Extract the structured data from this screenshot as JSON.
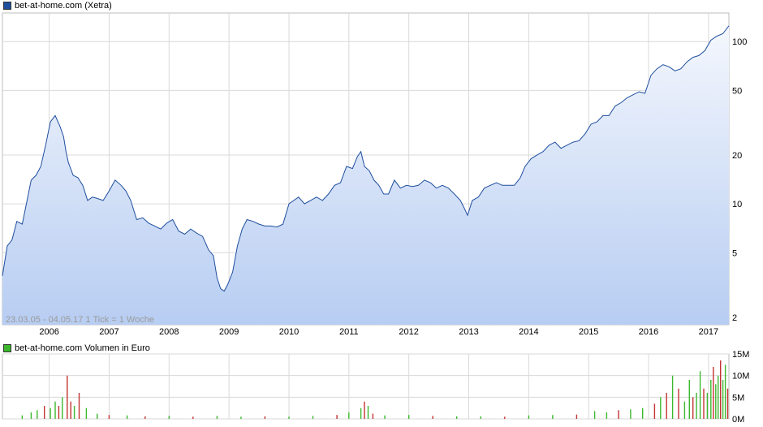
{
  "colors": {
    "price_line": "#1f4e9e",
    "price_fill_top": "#f4f7fd",
    "price_fill_bottom": "#b7cdf2",
    "volume_up": "#3cb82e",
    "volume_down": "#c43333",
    "grid": "#d9d9d9"
  },
  "chart_data": [
    {
      "type": "area",
      "title": "bet-at-home.com (Xetra)",
      "legend_color": "#1f4e9e",
      "note": "23.03.05 - 04.05.17   1 Tick = 1 Woche",
      "y_scale": "log",
      "ylim": [
        1.8,
        150
      ],
      "y_ticks": [
        2,
        5,
        10,
        20,
        50,
        100
      ],
      "y_tick_labels": [
        "2",
        "5",
        "10",
        "20",
        "50",
        "100"
      ],
      "x_ticks": [
        2006,
        2007,
        2008,
        2009,
        2010,
        2011,
        2012,
        2013,
        2014,
        2015,
        2016,
        2017
      ],
      "xlim": [
        2005.22,
        2017.34
      ],
      "grid": true,
      "series": [
        {
          "x": [
            2005.22,
            2005.3,
            2005.38,
            2005.46,
            2005.55,
            2005.62,
            2005.7,
            2005.78,
            2005.86,
            2005.94,
            2006.02,
            2006.1,
            2006.18,
            2006.24,
            2006.28,
            2006.32,
            2006.4,
            2006.48,
            2006.56,
            2006.64,
            2006.72,
            2006.8,
            2006.9,
            2007.0,
            2007.1,
            2007.2,
            2007.28,
            2007.36,
            2007.46,
            2007.56,
            2007.66,
            2007.76,
            2007.86,
            2007.96,
            2008.06,
            2008.16,
            2008.26,
            2008.36,
            2008.46,
            2008.56,
            2008.66,
            2008.74,
            2008.8,
            2008.86,
            2008.92,
            2008.98,
            2009.06,
            2009.14,
            2009.22,
            2009.3,
            2009.4,
            2009.5,
            2009.6,
            2009.7,
            2009.8,
            2009.9,
            2010.0,
            2010.08,
            2010.16,
            2010.26,
            2010.36,
            2010.46,
            2010.56,
            2010.66,
            2010.76,
            2010.86,
            2010.96,
            2011.06,
            2011.14,
            2011.2,
            2011.26,
            2011.34,
            2011.42,
            2011.5,
            2011.58,
            2011.66,
            2011.76,
            2011.86,
            2011.96,
            2012.06,
            2012.16,
            2012.26,
            2012.36,
            2012.46,
            2012.56,
            2012.66,
            2012.76,
            2012.86,
            2012.92,
            2012.98,
            2013.06,
            2013.16,
            2013.26,
            2013.36,
            2013.46,
            2013.56,
            2013.66,
            2013.76,
            2013.86,
            2013.94,
            2014.04,
            2014.14,
            2014.24,
            2014.34,
            2014.44,
            2014.54,
            2014.64,
            2014.74,
            2014.84,
            2014.94,
            2015.04,
            2015.14,
            2015.24,
            2015.34,
            2015.44,
            2015.54,
            2015.64,
            2015.74,
            2015.84,
            2015.94,
            2016.04,
            2016.14,
            2016.24,
            2016.34,
            2016.44,
            2016.54,
            2016.64,
            2016.74,
            2016.84,
            2016.94,
            2017.04,
            2017.14,
            2017.24,
            2017.34
          ],
          "values": [
            3.6,
            5.5,
            6.0,
            7.8,
            7.5,
            10.0,
            14.0,
            15.0,
            17.0,
            23.0,
            32.0,
            35.0,
            30.0,
            26.0,
            21.0,
            18.0,
            15.0,
            14.5,
            13.0,
            10.5,
            11.0,
            10.8,
            10.5,
            12.0,
            14.0,
            13.0,
            12.0,
            10.5,
            8.0,
            8.2,
            7.6,
            7.3,
            7.0,
            7.6,
            8.0,
            6.8,
            6.5,
            7.0,
            6.6,
            6.3,
            5.2,
            4.8,
            3.5,
            3.0,
            2.9,
            3.2,
            3.8,
            5.5,
            7.0,
            8.0,
            7.8,
            7.5,
            7.3,
            7.3,
            7.2,
            7.5,
            10.0,
            10.5,
            11.0,
            10.0,
            10.5,
            11.0,
            10.5,
            11.5,
            13.0,
            13.5,
            17.0,
            16.5,
            19.5,
            21.0,
            17.0,
            16.0,
            14.0,
            13.0,
            11.5,
            11.5,
            14.0,
            12.5,
            13.0,
            12.8,
            13.0,
            14.0,
            13.5,
            12.5,
            13.0,
            12.5,
            11.5,
            10.5,
            9.5,
            8.5,
            10.5,
            11.0,
            12.5,
            13.0,
            13.5,
            13.0,
            13.0,
            13.0,
            14.5,
            17.0,
            19.0,
            20.0,
            21.0,
            23.0,
            24.0,
            22.0,
            23.0,
            24.0,
            24.5,
            27.0,
            31.0,
            32.0,
            35.0,
            35.0,
            40.0,
            42.0,
            45.0,
            47.0,
            49.0,
            48.0,
            62.0,
            68.0,
            72.0,
            70.0,
            66.0,
            68.0,
            75.0,
            80.0,
            82.0,
            88.0,
            102.0,
            108.0,
            112.0,
            125.0
          ]
        }
      ]
    },
    {
      "type": "bar",
      "title": "bet-at-home.com Volumen in Euro",
      "legend_color": "#3cb82e",
      "ylim": [
        0,
        15000000
      ],
      "y_ticks": [
        0,
        5000000,
        10000000,
        15000000
      ],
      "y_tick_labels": [
        "0M",
        "5M",
        "10M",
        "15M"
      ],
      "xlim": [
        2005.22,
        2017.34
      ],
      "grid": true,
      "series": [
        {
          "x": [
            2005.55,
            2005.7,
            2005.8,
            2005.92,
            2006.02,
            2006.1,
            2006.16,
            2006.22,
            2006.3,
            2006.36,
            2006.42,
            2006.5,
            2006.62,
            2006.8,
            2007.0,
            2007.3,
            2007.6,
            2008.0,
            2008.4,
            2008.8,
            2009.2,
            2009.6,
            2010.0,
            2010.4,
            2010.8,
            2011.0,
            2011.2,
            2011.26,
            2011.32,
            2011.4,
            2011.6,
            2012.0,
            2012.4,
            2012.8,
            2013.2,
            2013.6,
            2014.0,
            2014.4,
            2014.8,
            2015.1,
            2015.3,
            2015.5,
            2015.7,
            2015.9,
            2016.1,
            2016.2,
            2016.3,
            2016.4,
            2016.5,
            2016.6,
            2016.68,
            2016.74,
            2016.8,
            2016.86,
            2016.92,
            2016.98,
            2017.04,
            2017.08,
            2017.12,
            2017.16,
            2017.2,
            2017.24,
            2017.28,
            2017.32
          ],
          "values": [
            800000,
            1500000,
            2000000,
            3000000,
            2500000,
            4000000,
            3000000,
            5000000,
            10000000,
            4000000,
            3000000,
            6000000,
            2500000,
            1200000,
            900000,
            800000,
            600000,
            700000,
            500000,
            700000,
            500000,
            600000,
            500000,
            700000,
            900000,
            1500000,
            2500000,
            4000000,
            3000000,
            1200000,
            800000,
            900000,
            700000,
            600000,
            600000,
            500000,
            800000,
            900000,
            1000000,
            1800000,
            1500000,
            2000000,
            2200000,
            2500000,
            3500000,
            5000000,
            6000000,
            10000000,
            7000000,
            4000000,
            9000000,
            5000000,
            6000000,
            11000000,
            7000000,
            6000000,
            9000000,
            12000000,
            8000000,
            10000000,
            13500000,
            9000000,
            12500000,
            7000000
          ],
          "direction": [
            1,
            1,
            1,
            -1,
            1,
            1,
            -1,
            1,
            -1,
            -1,
            1,
            -1,
            1,
            1,
            -1,
            1,
            -1,
            1,
            -1,
            1,
            1,
            -1,
            1,
            1,
            -1,
            1,
            1,
            -1,
            1,
            -1,
            1,
            1,
            -1,
            1,
            1,
            -1,
            1,
            1,
            -1,
            1,
            1,
            -1,
            1,
            1,
            -1,
            1,
            -1,
            1,
            -1,
            1,
            1,
            -1,
            1,
            1,
            -1,
            1,
            1,
            -1,
            1,
            1,
            -1,
            1,
            1,
            -1
          ]
        }
      ]
    }
  ]
}
